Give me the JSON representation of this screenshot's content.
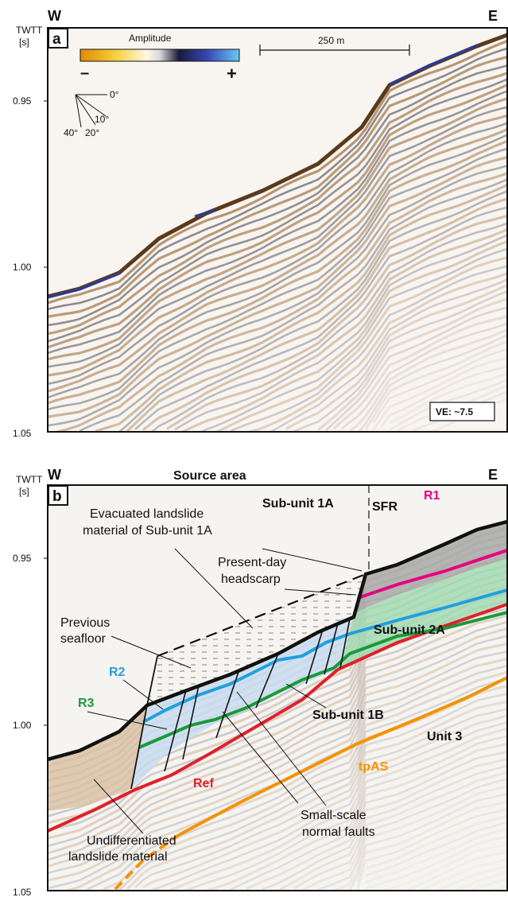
{
  "panel_a": {
    "letter": "a",
    "west": "W",
    "east": "E",
    "axis_title": "TWTT",
    "axis_unit": "[s]",
    "ticks": [
      "0.95",
      "1.00",
      "1.05"
    ],
    "amplitude_title": "Amplitude",
    "amp_minus": "–",
    "amp_plus": "+",
    "scale_label": "250 m",
    "dip_angles": [
      "0°",
      "10°",
      "20°",
      "40°"
    ],
    "ve_label": "VE: ~7.5"
  },
  "panel_b": {
    "letter": "b",
    "west": "W",
    "east": "E",
    "axis_title": "TWTT",
    "axis_unit": "[s]",
    "ticks": [
      "0.95",
      "1.00",
      "1.05"
    ],
    "source_area": "Source area",
    "evacuated": [
      "Evacuated landslide",
      "material of Sub-unit 1A"
    ],
    "sub_unit_1a": "Sub-unit 1A",
    "sfr": "SFR",
    "r1": "R1",
    "present_day": [
      "Present-day",
      "headscarp"
    ],
    "previous": [
      "Previous",
      "seafloor"
    ],
    "sub_unit_2a": "Sub-unit 2A",
    "r2": "R2",
    "r3": "R3",
    "sub_unit_1b": "Sub-unit 1B",
    "unit_3": "Unit 3",
    "ref": "Ref",
    "tpas": "tpAS",
    "small_faults": [
      "Small-scale",
      "normal faults"
    ],
    "undiff": [
      "Undifferentiated",
      "landslide material"
    ]
  },
  "colors": {
    "r1": "#e6007e",
    "r2": "#1fa0e0",
    "r3": "#1a9a3a",
    "ref": "#e0202a",
    "tpas": "#f39200",
    "subunit2a_fill": "#9fd9b0",
    "subunit1b_fill": "#c9dcf0",
    "undiff_fill": "#d9bfa3",
    "sfr_fill": "#a8a8a8"
  }
}
